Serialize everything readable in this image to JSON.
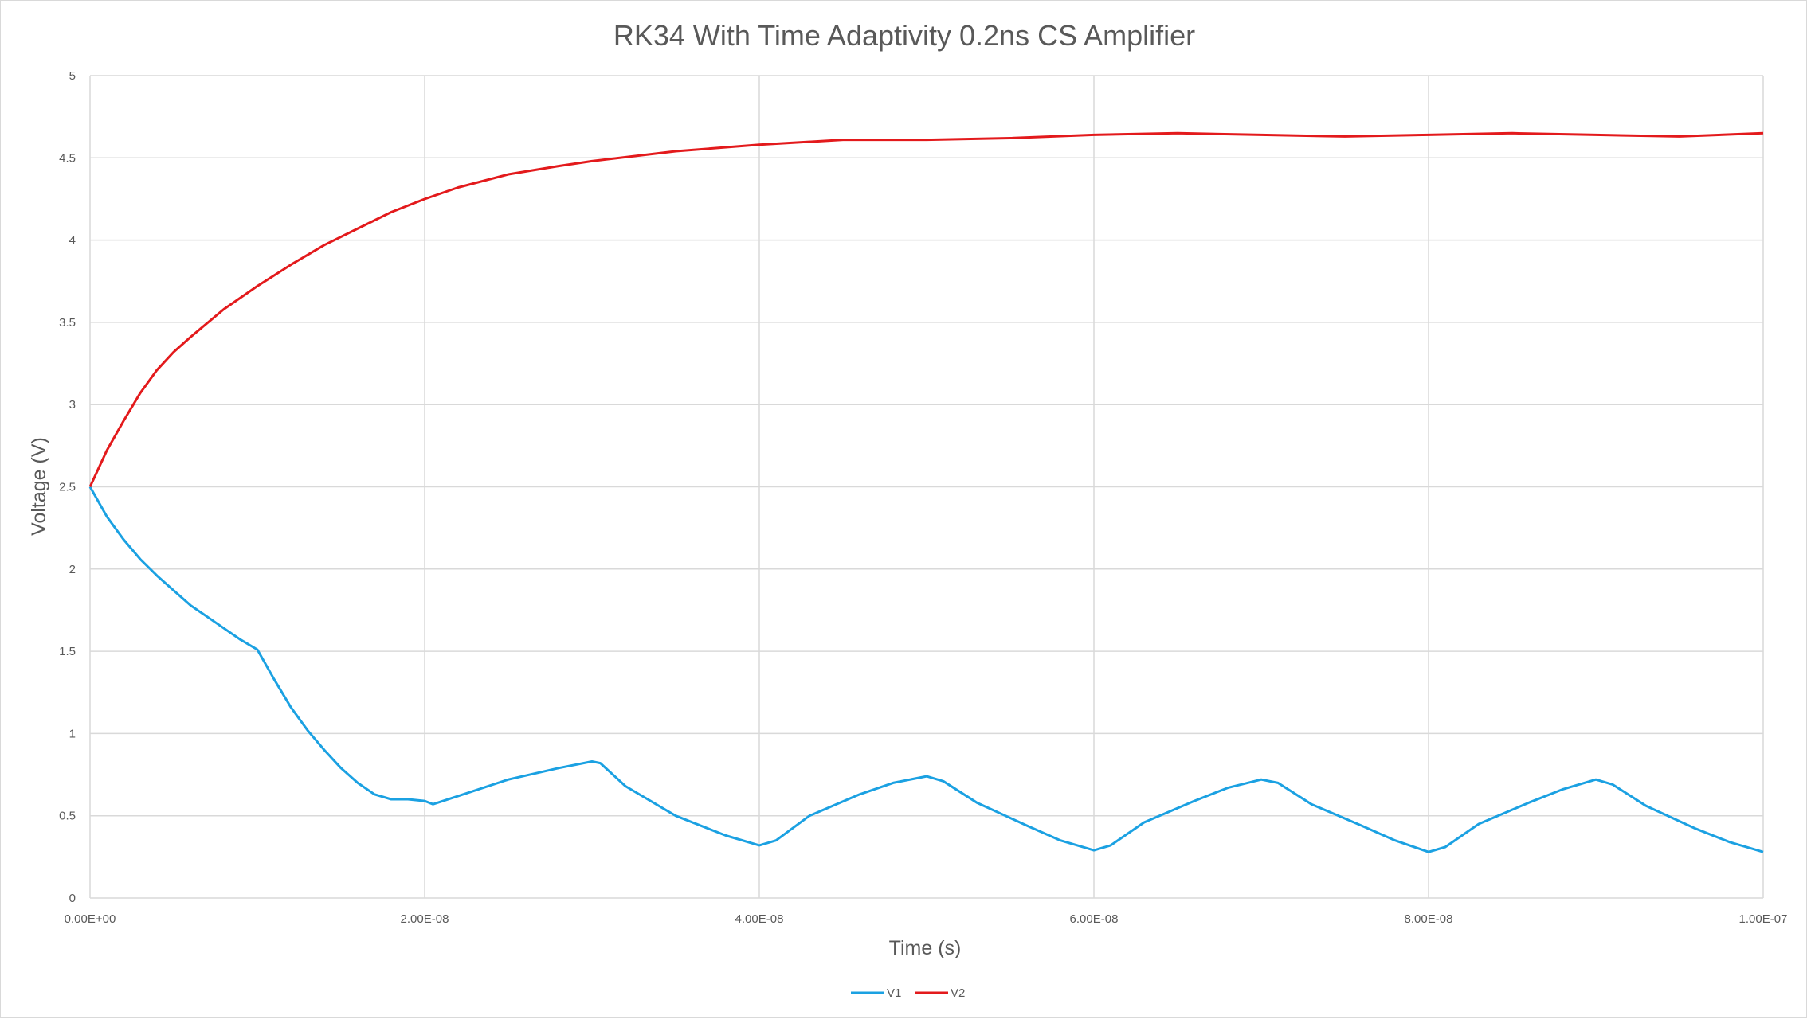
{
  "chart_data": {
    "type": "line",
    "title": "RK34 With Time Adaptivity 0.2ns CS Amplifier",
    "xlabel": "Time (s)",
    "ylabel": "Voltage (V)",
    "xlim": [
      0,
      1e-07
    ],
    "ylim": [
      0,
      5
    ],
    "x_ticks": [
      0,
      2e-08,
      4e-08,
      6e-08,
      8e-08,
      1e-07
    ],
    "x_tick_labels": [
      "0.00E+00",
      "2.00E-08",
      "4.00E-08",
      "6.00E-08",
      "8.00E-08",
      "1.00E-07"
    ],
    "y_ticks": [
      0,
      0.5,
      1,
      1.5,
      2,
      2.5,
      3,
      3.5,
      4,
      4.5,
      5
    ],
    "y_tick_labels": [
      "0",
      "0.5",
      "1",
      "1.5",
      "2",
      "2.5",
      "3",
      "3.5",
      "4",
      "4.5",
      "5"
    ],
    "grid": true,
    "legend_position": "bottom",
    "series": [
      {
        "name": "V1",
        "color": "#1BA1E2",
        "points": [
          [
            0,
            2.5
          ],
          [
            1e-09,
            2.32
          ],
          [
            2e-09,
            2.18
          ],
          [
            3e-09,
            2.06
          ],
          [
            4e-09,
            1.96
          ],
          [
            5e-09,
            1.87
          ],
          [
            6e-09,
            1.78
          ],
          [
            7e-09,
            1.71
          ],
          [
            8e-09,
            1.64
          ],
          [
            9e-09,
            1.57
          ],
          [
            1e-08,
            1.51
          ],
          [
            1.1e-08,
            1.33
          ],
          [
            1.2e-08,
            1.16
          ],
          [
            1.3e-08,
            1.02
          ],
          [
            1.4e-08,
            0.9
          ],
          [
            1.5e-08,
            0.79
          ],
          [
            1.6e-08,
            0.7
          ],
          [
            1.7e-08,
            0.63
          ],
          [
            1.8e-08,
            0.6
          ],
          [
            1.9e-08,
            0.6
          ],
          [
            2e-08,
            0.59
          ],
          [
            2.05e-08,
            0.57
          ],
          [
            2.2e-08,
            0.62
          ],
          [
            2.5e-08,
            0.72
          ],
          [
            2.8e-08,
            0.79
          ],
          [
            3e-08,
            0.83
          ],
          [
            3.05e-08,
            0.82
          ],
          [
            3.2e-08,
            0.68
          ],
          [
            3.5e-08,
            0.5
          ],
          [
            3.8e-08,
            0.38
          ],
          [
            4e-08,
            0.32
          ],
          [
            4.1e-08,
            0.35
          ],
          [
            4.3e-08,
            0.5
          ],
          [
            4.6e-08,
            0.63
          ],
          [
            4.8e-08,
            0.7
          ],
          [
            5e-08,
            0.74
          ],
          [
            5.1e-08,
            0.71
          ],
          [
            5.3e-08,
            0.58
          ],
          [
            5.6e-08,
            0.44
          ],
          [
            5.8e-08,
            0.35
          ],
          [
            6e-08,
            0.29
          ],
          [
            6.1e-08,
            0.32
          ],
          [
            6.3e-08,
            0.46
          ],
          [
            6.6e-08,
            0.59
          ],
          [
            6.8e-08,
            0.67
          ],
          [
            7e-08,
            0.72
          ],
          [
            7.1e-08,
            0.7
          ],
          [
            7.3e-08,
            0.57
          ],
          [
            7.6e-08,
            0.44
          ],
          [
            7.8e-08,
            0.35
          ],
          [
            8e-08,
            0.28
          ],
          [
            8.1e-08,
            0.31
          ],
          [
            8.3e-08,
            0.45
          ],
          [
            8.6e-08,
            0.58
          ],
          [
            8.8e-08,
            0.66
          ],
          [
            9e-08,
            0.72
          ],
          [
            9.1e-08,
            0.69
          ],
          [
            9.3e-08,
            0.56
          ],
          [
            9.6e-08,
            0.42
          ],
          [
            9.8e-08,
            0.34
          ],
          [
            1e-07,
            0.28
          ]
        ]
      },
      {
        "name": "V2",
        "color": "#E31A1C",
        "points": [
          [
            0,
            2.5
          ],
          [
            1e-09,
            2.72
          ],
          [
            2e-09,
            2.9
          ],
          [
            3e-09,
            3.07
          ],
          [
            4e-09,
            3.21
          ],
          [
            5e-09,
            3.32
          ],
          [
            6e-09,
            3.41
          ],
          [
            8e-09,
            3.58
          ],
          [
            1e-08,
            3.72
          ],
          [
            1.2e-08,
            3.85
          ],
          [
            1.4e-08,
            3.97
          ],
          [
            1.6e-08,
            4.07
          ],
          [
            1.8e-08,
            4.17
          ],
          [
            2e-08,
            4.25
          ],
          [
            2.2e-08,
            4.32
          ],
          [
            2.5e-08,
            4.4
          ],
          [
            2.8e-08,
            4.45
          ],
          [
            3e-08,
            4.48
          ],
          [
            3.5e-08,
            4.54
          ],
          [
            4e-08,
            4.58
          ],
          [
            4.5e-08,
            4.61
          ],
          [
            5e-08,
            4.61
          ],
          [
            5.5e-08,
            4.62
          ],
          [
            6e-08,
            4.64
          ],
          [
            6.5e-08,
            4.65
          ],
          [
            7e-08,
            4.64
          ],
          [
            7.5e-08,
            4.63
          ],
          [
            8e-08,
            4.64
          ],
          [
            8.5e-08,
            4.65
          ],
          [
            9e-08,
            4.64
          ],
          [
            9.5e-08,
            4.63
          ],
          [
            1e-07,
            4.65
          ]
        ]
      }
    ]
  }
}
